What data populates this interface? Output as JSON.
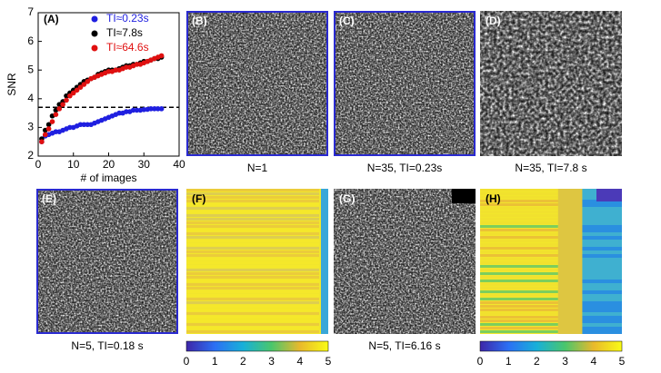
{
  "chart_data": {
    "type": "scatter",
    "panel_label": "(A)",
    "x_label": "# of images",
    "y_label": "SNR",
    "xlim": [
      0,
      40
    ],
    "xticks": [
      0,
      10,
      20,
      30,
      40
    ],
    "ylim": [
      2,
      7
    ],
    "yticks": [
      2,
      3,
      4,
      5,
      6,
      7
    ],
    "reference_line": 3.7,
    "x": [
      1,
      2,
      3,
      4,
      5,
      6,
      7,
      8,
      9,
      10,
      11,
      12,
      13,
      14,
      15,
      16,
      17,
      18,
      19,
      20,
      21,
      22,
      23,
      24,
      25,
      26,
      27,
      28,
      29,
      30,
      31,
      32,
      33,
      34,
      35
    ],
    "series": [
      {
        "name": "TI≈0.23s",
        "color": "#1f1fe0",
        "values": [
          2.5,
          2.7,
          2.75,
          2.8,
          2.85,
          2.85,
          2.9,
          2.95,
          3.0,
          3.0,
          3.05,
          3.1,
          3.1,
          3.1,
          3.1,
          3.15,
          3.2,
          3.25,
          3.3,
          3.35,
          3.4,
          3.45,
          3.5,
          3.5,
          3.55,
          3.55,
          3.6,
          3.6,
          3.6,
          3.62,
          3.63,
          3.65,
          3.65,
          3.65,
          3.65
        ]
      },
      {
        "name": "TI≈7.8s",
        "color": "#000000",
        "values": [
          2.6,
          2.9,
          3.1,
          3.4,
          3.6,
          3.8,
          3.9,
          4.1,
          4.2,
          4.3,
          4.4,
          4.5,
          4.6,
          4.65,
          4.7,
          4.75,
          4.85,
          4.9,
          4.95,
          5.0,
          5.0,
          5.0,
          5.05,
          5.1,
          5.15,
          5.15,
          5.2,
          5.2,
          5.25,
          5.3,
          5.3,
          5.35,
          5.4,
          5.4,
          5.45
        ]
      },
      {
        "name": "TI≈64.6s",
        "color": "#e01010",
        "values": [
          2.5,
          2.75,
          2.95,
          3.2,
          3.45,
          3.65,
          3.8,
          3.95,
          4.1,
          4.2,
          4.3,
          4.4,
          4.5,
          4.6,
          4.7,
          4.75,
          4.8,
          4.85,
          4.9,
          4.95,
          4.95,
          5.0,
          5.0,
          5.05,
          5.1,
          5.1,
          5.15,
          5.2,
          5.2,
          5.25,
          5.3,
          5.35,
          5.4,
          5.45,
          5.5
        ]
      }
    ]
  },
  "panels": [
    {
      "label": "(B)",
      "caption": "N=1"
    },
    {
      "label": "(C)",
      "caption": "N=35, TI=0.23s"
    },
    {
      "label": "(D)",
      "caption": "N=35, TI=7.8 s"
    },
    {
      "label": "(E)",
      "caption": "N=5, TI=0.18 s"
    },
    {
      "label": "(F)"
    },
    {
      "label": "(G)",
      "caption": "N=5, TI=6.16 s"
    },
    {
      "label": "(H)"
    }
  ],
  "colorbar": {
    "ticks": [
      0,
      1,
      2,
      3,
      4,
      5
    ]
  }
}
